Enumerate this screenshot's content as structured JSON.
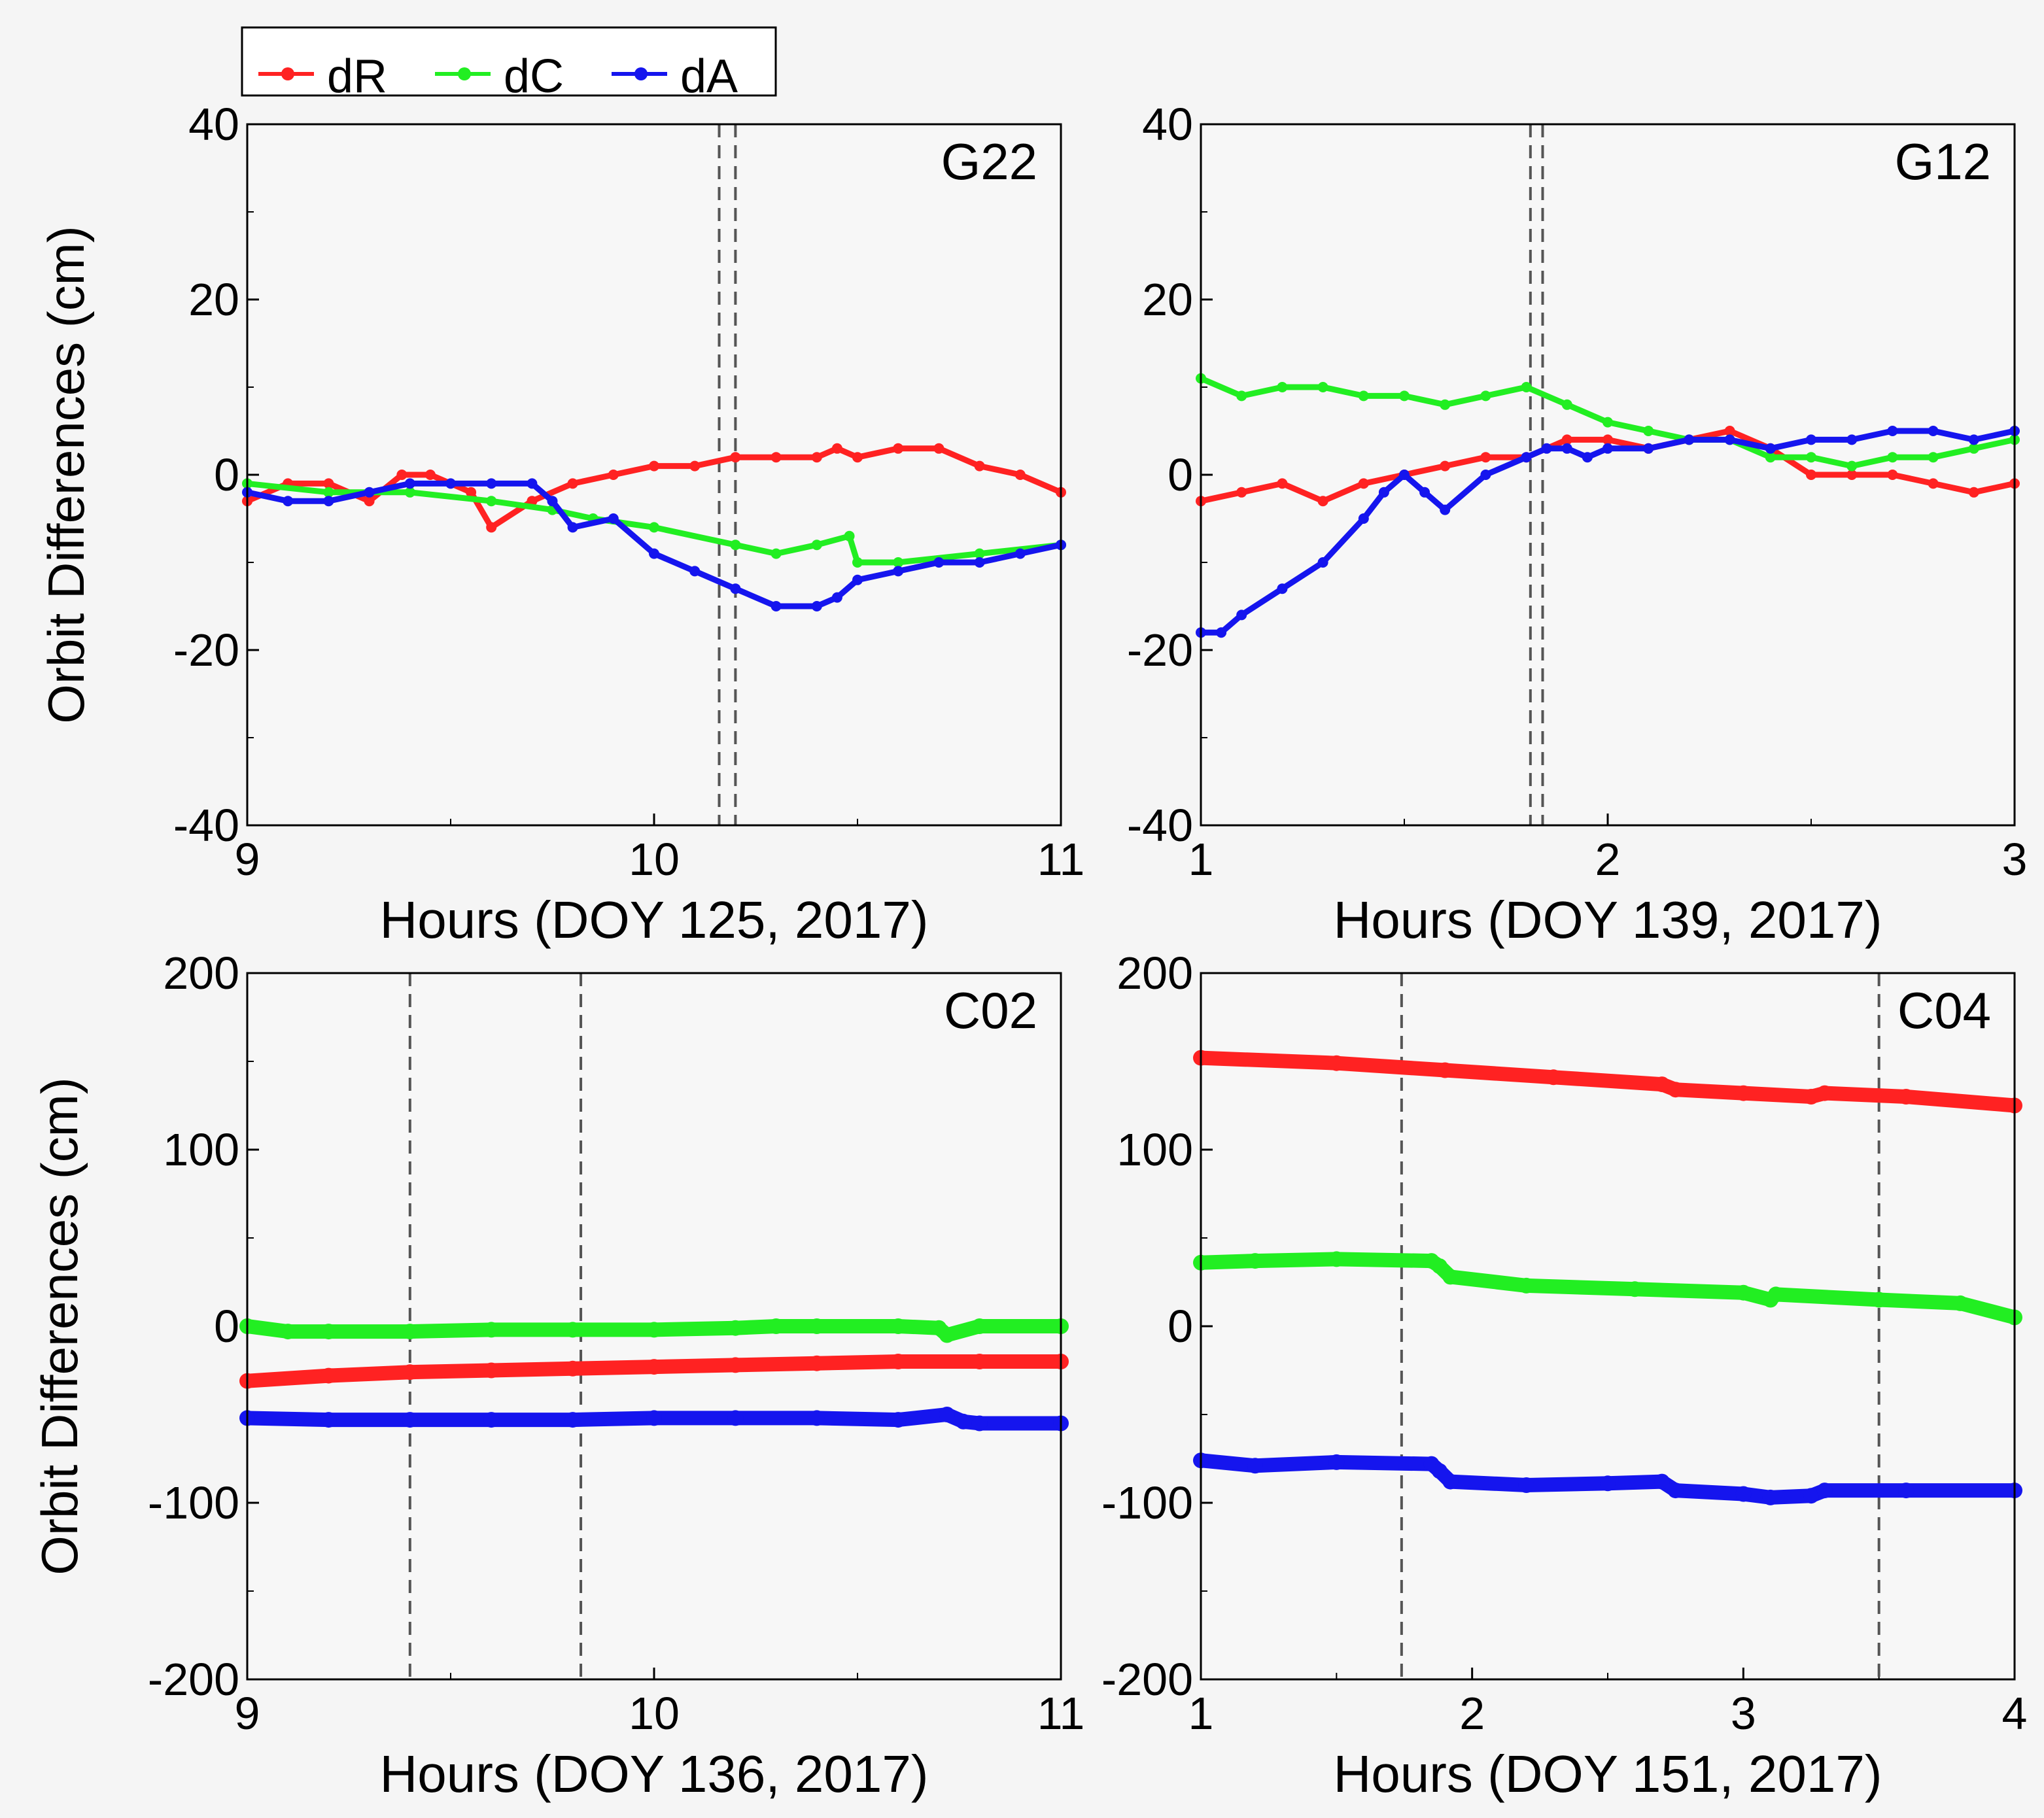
{
  "figure": {
    "legend": [
      {
        "label": "dR",
        "color": "#ff2222"
      },
      {
        "label": "dC",
        "color": "#22ee22"
      },
      {
        "label": "dA",
        "color": "#1515ee"
      }
    ],
    "colors": {
      "frame": "#000000",
      "event_line": "#555555",
      "background": "#f5f5f5"
    }
  },
  "chart_data": [
    {
      "type": "line",
      "title": "G22",
      "xlabel": "Hours (DOY 125, 2017)",
      "ylabel": "Orbit Differences (cm)",
      "xlim": [
        9,
        11
      ],
      "ylim": [
        -40,
        40
      ],
      "xticks": [
        9,
        10,
        11
      ],
      "yticks": [
        -40,
        -20,
        0,
        20,
        40
      ],
      "event_lines_x": [
        10.16,
        10.2
      ],
      "series": [
        {
          "name": "dR",
          "x": [
            9.0,
            9.1,
            9.2,
            9.3,
            9.38,
            9.45,
            9.55,
            9.6,
            9.7,
            9.8,
            9.9,
            10.0,
            10.1,
            10.2,
            10.3,
            10.4,
            10.45,
            10.5,
            10.6,
            10.7,
            10.8,
            10.9,
            11.0
          ],
          "y": [
            -3,
            -1,
            -1,
            -3,
            0,
            0,
            -2,
            -6,
            -3,
            -1,
            0,
            1,
            1,
            2,
            2,
            2,
            3,
            2,
            3,
            3,
            1,
            0,
            -2
          ]
        },
        {
          "name": "dC",
          "x": [
            9.0,
            9.2,
            9.4,
            9.6,
            9.75,
            9.85,
            10.0,
            10.2,
            10.3,
            10.4,
            10.48,
            10.5,
            10.6,
            10.8,
            11.0
          ],
          "y": [
            -1,
            -2,
            -2,
            -3,
            -4,
            -5,
            -6,
            -8,
            -9,
            -8,
            -7,
            -10,
            -10,
            -9,
            -8
          ]
        },
        {
          "name": "dA",
          "x": [
            9.0,
            9.1,
            9.2,
            9.3,
            9.4,
            9.5,
            9.6,
            9.7,
            9.75,
            9.8,
            9.9,
            10.0,
            10.1,
            10.2,
            10.3,
            10.4,
            10.45,
            10.5,
            10.6,
            10.7,
            10.8,
            10.9,
            11.0
          ],
          "y": [
            -2,
            -3,
            -3,
            -2,
            -1,
            -1,
            -1,
            -1,
            -3,
            -6,
            -5,
            -9,
            -11,
            -13,
            -15,
            -15,
            -14,
            -12,
            -11,
            -10,
            -10,
            -9,
            -8
          ]
        }
      ]
    },
    {
      "type": "line",
      "title": "G12",
      "xlabel": "Hours (DOY 139, 2017)",
      "ylabel": "",
      "xlim": [
        1,
        3
      ],
      "ylim": [
        -40,
        40
      ],
      "xticks": [
        1,
        2,
        3
      ],
      "yticks": [
        -40,
        -20,
        0,
        20,
        40
      ],
      "event_lines_x": [
        1.81,
        1.84
      ],
      "series": [
        {
          "name": "dR",
          "x": [
            1.0,
            1.1,
            1.2,
            1.3,
            1.4,
            1.5,
            1.6,
            1.7,
            1.8,
            1.9,
            2.0,
            2.1,
            2.2,
            2.3,
            2.4,
            2.5,
            2.6,
            2.7,
            2.8,
            2.9,
            3.0
          ],
          "y": [
            -3,
            -2,
            -1,
            -3,
            -1,
            0,
            1,
            2,
            2,
            4,
            4,
            3,
            4,
            5,
            3,
            0,
            0,
            0,
            -1,
            -2,
            -1
          ]
        },
        {
          "name": "dC",
          "x": [
            1.0,
            1.1,
            1.2,
            1.3,
            1.4,
            1.5,
            1.6,
            1.7,
            1.8,
            1.9,
            2.0,
            2.1,
            2.2,
            2.3,
            2.4,
            2.5,
            2.6,
            2.7,
            2.8,
            2.9,
            3.0
          ],
          "y": [
            11,
            9,
            10,
            10,
            9,
            9,
            8,
            9,
            10,
            8,
            6,
            5,
            4,
            4,
            2,
            2,
            1,
            2,
            2,
            3,
            4
          ]
        },
        {
          "name": "dA",
          "x": [
            1.0,
            1.05,
            1.1,
            1.2,
            1.3,
            1.4,
            1.45,
            1.5,
            1.55,
            1.6,
            1.7,
            1.8,
            1.85,
            1.9,
            1.95,
            2.0,
            2.1,
            2.2,
            2.3,
            2.4,
            2.5,
            2.6,
            2.7,
            2.8,
            2.9,
            3.0
          ],
          "y": [
            -18,
            -18,
            -16,
            -13,
            -10,
            -5,
            -2,
            0,
            -2,
            -4,
            0,
            2,
            3,
            3,
            2,
            3,
            3,
            4,
            4,
            3,
            4,
            4,
            5,
            5,
            4,
            5
          ]
        }
      ]
    },
    {
      "type": "line",
      "title": "C02",
      "xlabel": "Hours (DOY 136, 2017)",
      "ylabel": "Orbit Differences (cm)",
      "xlim": [
        9,
        11
      ],
      "ylim": [
        -200,
        200
      ],
      "xticks": [
        9,
        10,
        11
      ],
      "yticks": [
        -200,
        -100,
        0,
        100,
        200
      ],
      "event_lines_x": [
        9.4,
        9.82
      ],
      "series": [
        {
          "name": "dR",
          "x": [
            9.0,
            9.2,
            9.4,
            9.6,
            9.8,
            10.0,
            10.2,
            10.4,
            10.6,
            10.8,
            11.0
          ],
          "y": [
            -31,
            -28,
            -26,
            -25,
            -24,
            -23,
            -22,
            -21,
            -20,
            -20,
            -20
          ]
        },
        {
          "name": "dC",
          "x": [
            9.0,
            9.1,
            9.2,
            9.4,
            9.6,
            9.8,
            10.0,
            10.2,
            10.3,
            10.4,
            10.6,
            10.7,
            10.72,
            10.8,
            11.0
          ],
          "y": [
            0,
            -3,
            -3,
            -3,
            -2,
            -2,
            -2,
            -1,
            0,
            0,
            0,
            -1,
            -5,
            0,
            0
          ]
        },
        {
          "name": "dA",
          "x": [
            9.0,
            9.2,
            9.4,
            9.6,
            9.8,
            10.0,
            10.2,
            10.4,
            10.6,
            10.72,
            10.76,
            10.8,
            11.0
          ],
          "y": [
            -52,
            -53,
            -53,
            -53,
            -53,
            -52,
            -52,
            -52,
            -53,
            -50,
            -54,
            -55,
            -55
          ]
        }
      ]
    },
    {
      "type": "line",
      "title": "C04",
      "xlabel": "Hours (DOY 151, 2017)",
      "ylabel": "",
      "xlim": [
        1,
        4
      ],
      "ylim": [
        -200,
        200
      ],
      "xticks": [
        1,
        2,
        3,
        4
      ],
      "yticks": [
        -200,
        -100,
        0,
        100,
        200
      ],
      "event_lines_x": [
        1.74,
        3.5
      ],
      "series": [
        {
          "name": "dR",
          "x": [
            1.0,
            1.5,
            1.9,
            2.3,
            2.7,
            2.75,
            3.0,
            3.25,
            3.3,
            3.6,
            4.0
          ],
          "y": [
            152,
            149,
            145,
            141,
            137,
            134,
            132,
            130,
            132,
            130,
            125
          ]
        },
        {
          "name": "dC",
          "x": [
            1.0,
            1.2,
            1.5,
            1.85,
            1.88,
            1.92,
            2.2,
            2.6,
            3.0,
            3.1,
            3.12,
            3.5,
            3.8,
            4.0
          ],
          "y": [
            36,
            37,
            38,
            37,
            34,
            28,
            23,
            21,
            19,
            15,
            18,
            15,
            13,
            5
          ]
        },
        {
          "name": "dA",
          "x": [
            1.0,
            1.2,
            1.5,
            1.85,
            1.88,
            1.92,
            2.2,
            2.5,
            2.7,
            2.75,
            3.0,
            3.1,
            3.25,
            3.3,
            3.6,
            4.0
          ],
          "y": [
            -76,
            -79,
            -77,
            -78,
            -82,
            -88,
            -90,
            -89,
            -88,
            -93,
            -95,
            -97,
            -96,
            -93,
            -93,
            -93
          ]
        }
      ]
    }
  ]
}
